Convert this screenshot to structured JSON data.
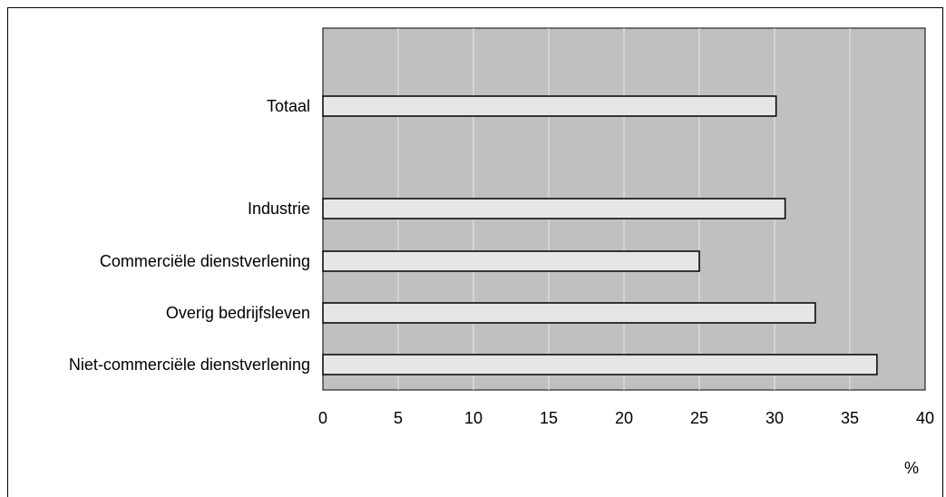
{
  "chart_data": {
    "type": "bar",
    "orientation": "horizontal",
    "categories": [
      "Totaal",
      "Industrie",
      "Commerciële dienstverlening",
      "Overig bedrijfsleven",
      "Niet-commerciële dienstverlening"
    ],
    "values": [
      30.1,
      30.7,
      25.0,
      32.7,
      36.8
    ],
    "x_ticks": [
      "0",
      "5",
      "10",
      "15",
      "20",
      "25",
      "30",
      "35",
      "40"
    ],
    "xlim": [
      0,
      40
    ],
    "unit_label": "%",
    "grid": true,
    "plot_background": "#c0c0c0",
    "bar_fill": "#e6e6e6",
    "bar_stroke": "#000000",
    "gridline_color": "#e8e8e8"
  }
}
